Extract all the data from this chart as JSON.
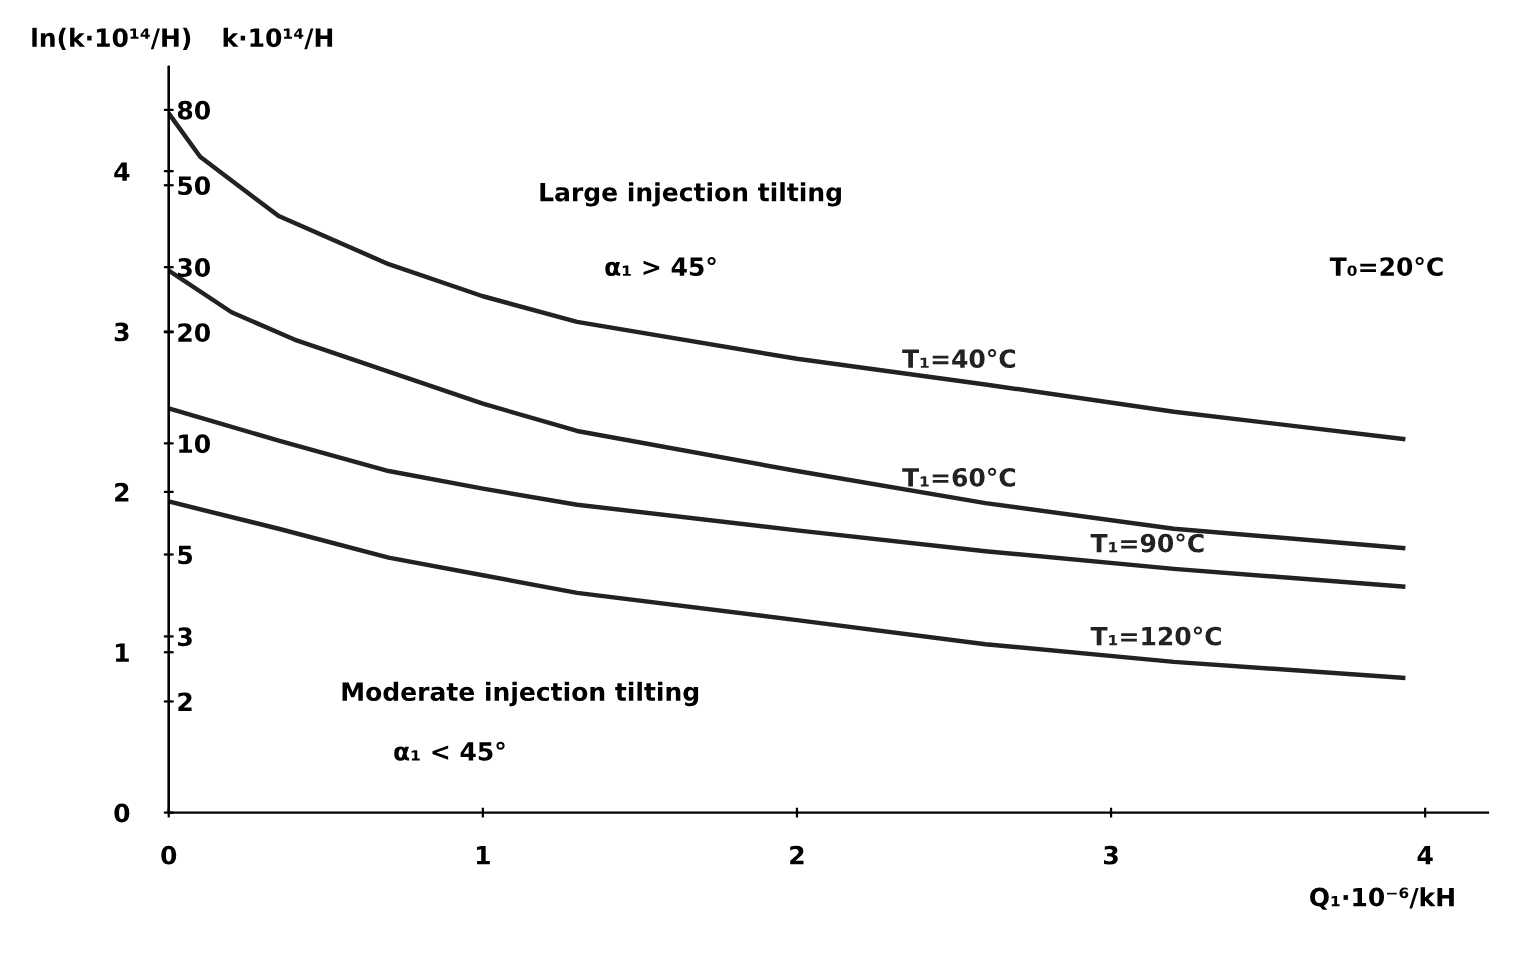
{
  "chart_data": {
    "type": "line",
    "xlabel": "Q₁·10⁻⁶/kH",
    "ylabel": "ln(k·10¹⁴/H)",
    "y2label": "k·10¹⁴/H",
    "xlim": [
      0,
      4.2
    ],
    "xticks": [
      0,
      1,
      2,
      3,
      4
    ],
    "ylim": [
      0,
      4.65
    ],
    "yticks": [
      0,
      1,
      2,
      3,
      4
    ],
    "y2lim": [
      1,
      104.58
    ],
    "log": "y2",
    "y2ticks": [
      80,
      50,
      30,
      20,
      10,
      5,
      3,
      2
    ],
    "grid": false,
    "legend": false,
    "marker": "none",
    "line_style": "solid",
    "series": [
      {
        "name": "T₁=40°C",
        "color": "#222222",
        "x": [
          0,
          0.1,
          0.35,
          0.7,
          1.0,
          1.3,
          2.0,
          2.6,
          3.2,
          3.93
        ],
        "values": [
          4.36,
          4.09,
          3.72,
          3.42,
          3.22,
          3.06,
          2.83,
          2.67,
          2.5,
          2.33
        ]
      },
      {
        "name": "T₁=60°C",
        "color": "#222222",
        "x": [
          0,
          0.2,
          0.4,
          0.7,
          1.0,
          1.3,
          2.0,
          2.6,
          3.2,
          3.93
        ],
        "values": [
          3.38,
          3.12,
          2.95,
          2.75,
          2.55,
          2.38,
          2.13,
          1.93,
          1.77,
          1.65
        ]
      },
      {
        "name": "T₁=90°C",
        "color": "#222222",
        "x": [
          0,
          0.35,
          0.7,
          1.0,
          1.3,
          2.0,
          2.6,
          3.2,
          3.93
        ],
        "values": [
          2.52,
          2.32,
          2.13,
          2.02,
          1.92,
          1.76,
          1.63,
          1.52,
          1.41
        ]
      },
      {
        "name": "T₁=120°C",
        "color": "#222222",
        "x": [
          0,
          0.35,
          0.7,
          1.0,
          1.3,
          2.0,
          2.6,
          3.2,
          3.93
        ],
        "values": [
          1.94,
          1.77,
          1.59,
          1.48,
          1.37,
          1.2,
          1.05,
          0.94,
          0.84
        ]
      }
    ],
    "annotations": [
      "Large injection tilting",
      "α₁ > 45°",
      "T₀=20°C",
      "Moderate injection tilting",
      "α₁ < 45°"
    ]
  }
}
